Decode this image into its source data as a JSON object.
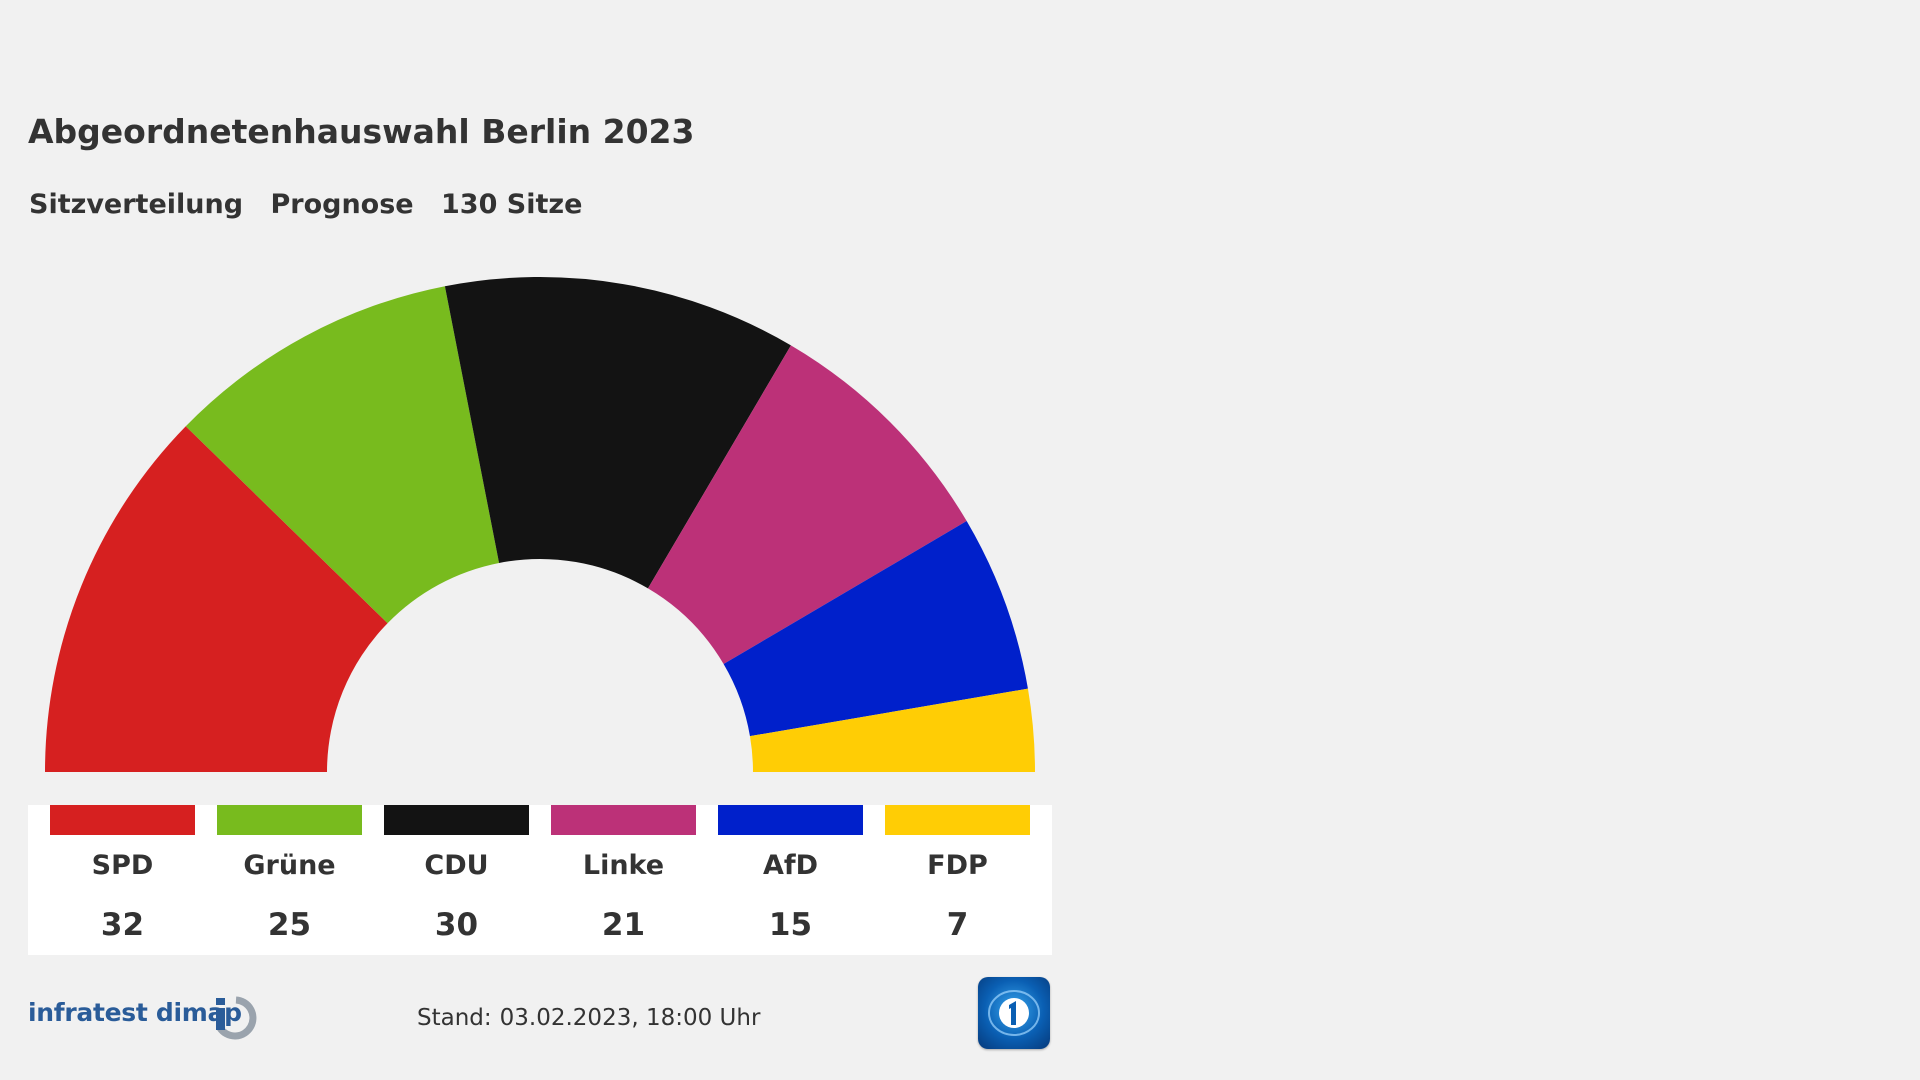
{
  "header": {
    "title": "Abgeordnetenhauswahl Berlin 2023",
    "subtitle_parts": [
      "Sitzverteilung",
      "Prognose",
      "130 Sitze"
    ]
  },
  "chart_data": {
    "type": "pie",
    "layout": "semicircle-parliament",
    "title": "Abgeordnetenhauswahl Berlin 2023",
    "total_seats": 130,
    "categories": [
      "SPD",
      "Grüne",
      "CDU",
      "Linke",
      "AfD",
      "FDP"
    ],
    "values": [
      32,
      25,
      30,
      21,
      15,
      7
    ],
    "colors": [
      "#d62020",
      "#78bb1e",
      "#131313",
      "#bc3178",
      "#0020cb",
      "#ffcd05"
    ]
  },
  "footer": {
    "source_logo_text": "infratest dimap",
    "stand_label": "Stand:",
    "stand_value": "03.02.2023, 18:00 Uhr",
    "broadcaster_logo_icon": "ard-one-icon"
  }
}
